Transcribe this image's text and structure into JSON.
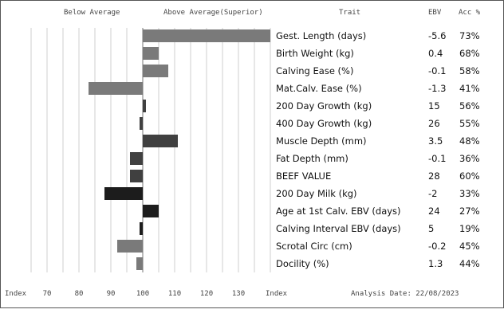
{
  "header": {
    "below": "Below Average",
    "above": "Above Average(Superior)",
    "trait": "Trait",
    "ebv": "EBV",
    "acc": "Acc %"
  },
  "footer": {
    "index_left": "Index",
    "index_right": "Index",
    "analysis_date": "Analysis Date: 22/08/2023"
  },
  "chart_data": {
    "type": "bar",
    "orientation": "horizontal",
    "baseline": 100,
    "xlim": [
      60,
      140
    ],
    "xticks": [
      "70",
      "80",
      "90",
      "100",
      "110",
      "120",
      "130"
    ],
    "grid": true,
    "rows": [
      {
        "trait": "Gest. Length (days)",
        "ebv": "-5.6",
        "acc": "73%",
        "index": 140,
        "color": "#7a7a7a"
      },
      {
        "trait": "Birth Weight (kg)",
        "ebv": "0.4",
        "acc": "68%",
        "index": 105,
        "color": "#7a7a7a"
      },
      {
        "trait": "Calving Ease (%)",
        "ebv": "-0.1",
        "acc": "58%",
        "index": 108,
        "color": "#7a7a7a"
      },
      {
        "trait": "Mat.Calv. Ease (%)",
        "ebv": "-1.3",
        "acc": "41%",
        "index": 83,
        "color": "#7a7a7a"
      },
      {
        "trait": "200 Day Growth (kg)",
        "ebv": "15",
        "acc": "56%",
        "index": 101,
        "color": "#404040"
      },
      {
        "trait": "400 Day Growth (kg)",
        "ebv": "26",
        "acc": "55%",
        "index": 99,
        "color": "#404040"
      },
      {
        "trait": "Muscle Depth (mm)",
        "ebv": "3.5",
        "acc": "48%",
        "index": 111,
        "color": "#404040"
      },
      {
        "trait": "Fat Depth (mm)",
        "ebv": "-0.1",
        "acc": "36%",
        "index": 96,
        "color": "#404040"
      },
      {
        "trait": "BEEF VALUE",
        "ebv": "28",
        "acc": "60%",
        "index": 96,
        "color": "#404040"
      },
      {
        "trait": "200 Day Milk (kg)",
        "ebv": "-2",
        "acc": "33%",
        "index": 88,
        "color": "#1c1c1c"
      },
      {
        "trait": "Age at 1st Calv. EBV (days)",
        "ebv": "24",
        "acc": "27%",
        "index": 105,
        "color": "#1c1c1c"
      },
      {
        "trait": "Calving Interval EBV (days)",
        "ebv": "5",
        "acc": "19%",
        "index": 99,
        "color": "#1c1c1c"
      },
      {
        "trait": "Scrotal Circ (cm)",
        "ebv": "-0.2",
        "acc": "45%",
        "index": 92,
        "color": "#7a7a7a"
      },
      {
        "trait": "Docility (%)",
        "ebv": "1.3",
        "acc": "44%",
        "index": 98,
        "color": "#7a7a7a"
      }
    ]
  }
}
